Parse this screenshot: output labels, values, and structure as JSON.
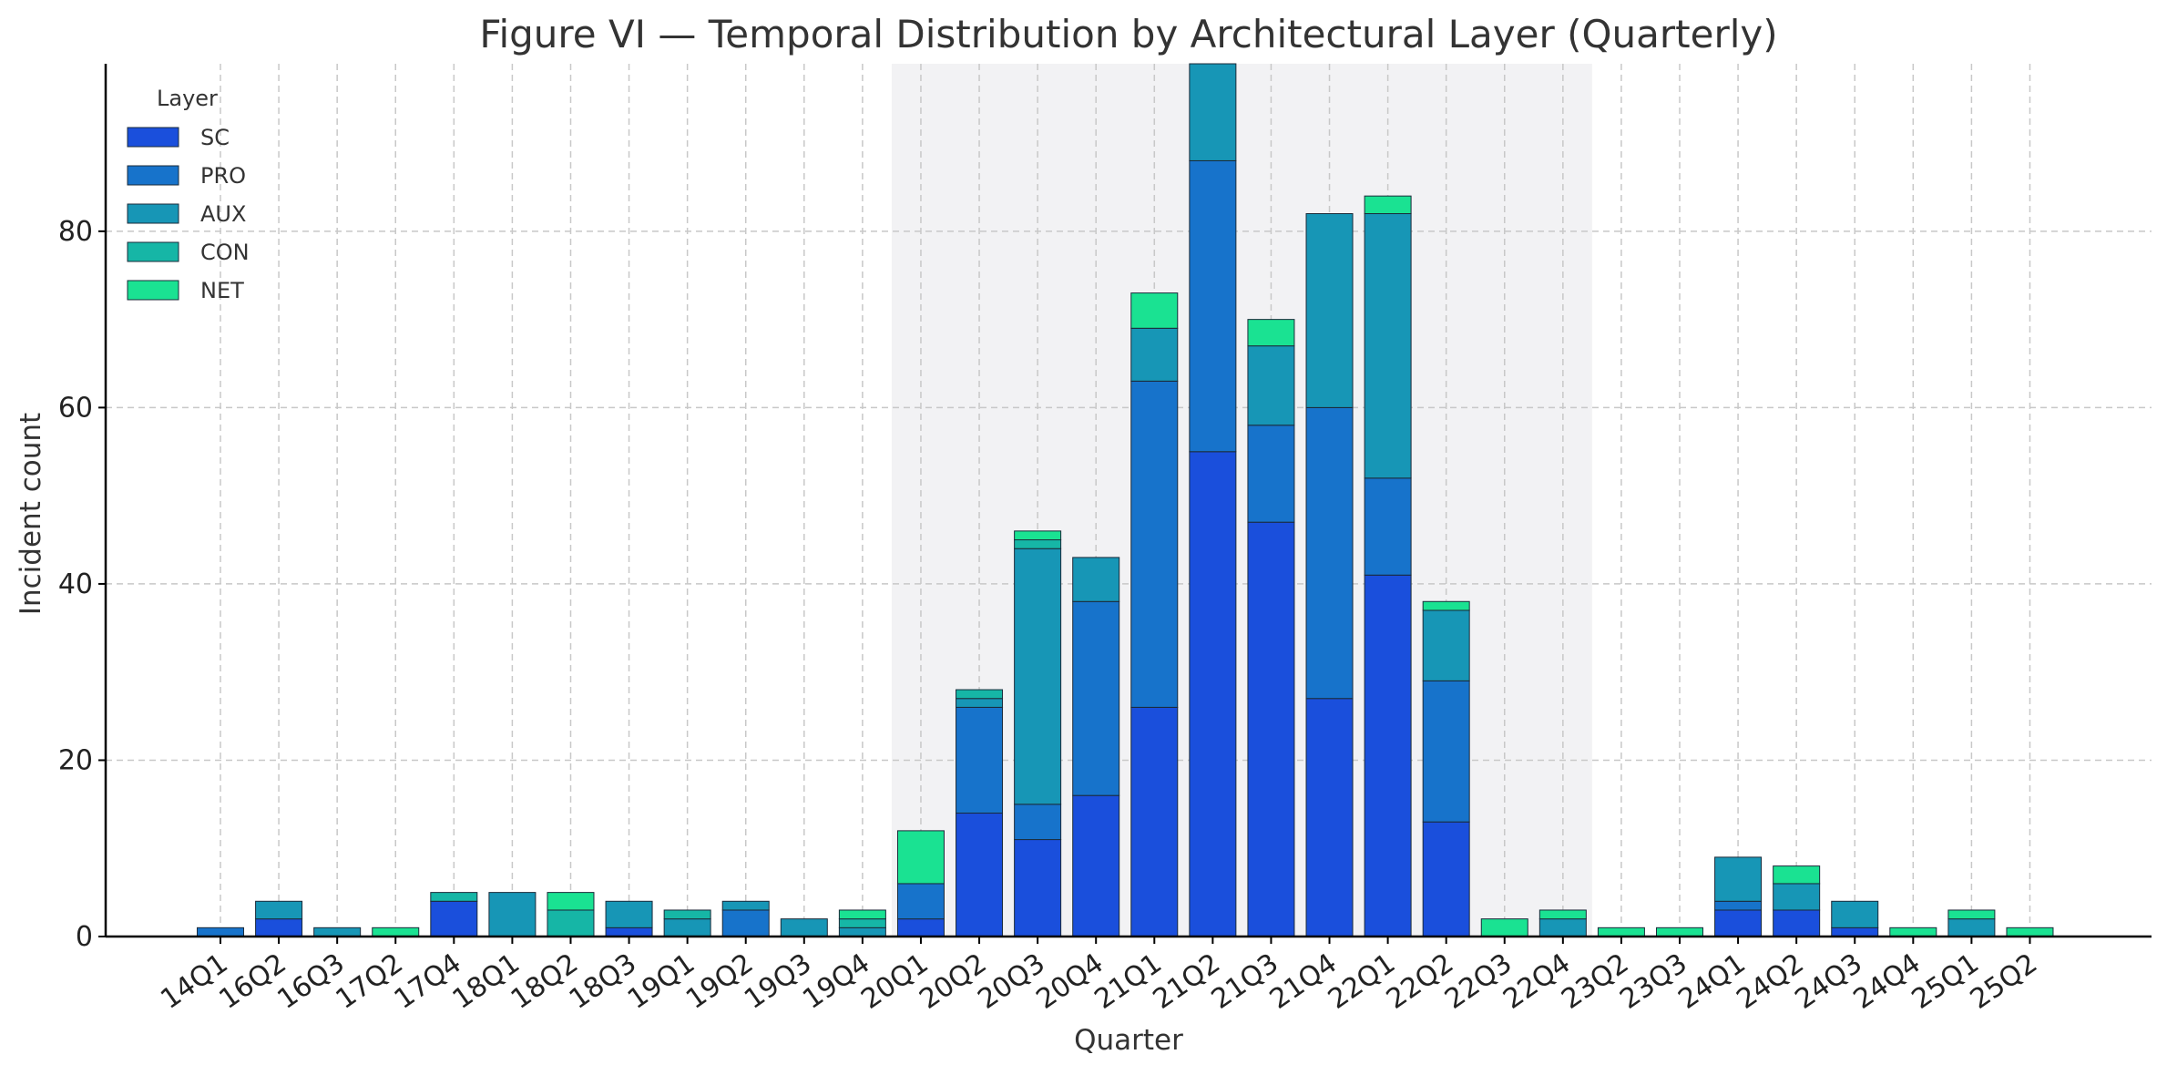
{
  "chart_data": {
    "type": "bar",
    "stacked": true,
    "title": "Figure VI — Temporal Distribution by Architectural Layer (Quarterly)",
    "xlabel": "Quarter",
    "ylabel": "Incident count",
    "ylim": [
      0,
      99
    ],
    "yticks": [
      0,
      20,
      40,
      60,
      80
    ],
    "grid": true,
    "legend": {
      "title": "Layer",
      "placement": "top-left"
    },
    "highlight_range": [
      "20Q1",
      "22Q4"
    ],
    "categories": [
      "14Q1",
      "16Q2",
      "16Q3",
      "17Q2",
      "17Q4",
      "18Q1",
      "18Q2",
      "18Q3",
      "19Q1",
      "19Q2",
      "19Q3",
      "19Q4",
      "20Q1",
      "20Q2",
      "20Q3",
      "20Q4",
      "21Q1",
      "21Q2",
      "21Q3",
      "21Q4",
      "22Q1",
      "22Q2",
      "22Q3",
      "22Q4",
      "23Q2",
      "23Q3",
      "24Q1",
      "24Q2",
      "24Q3",
      "24Q4",
      "25Q1",
      "25Q2"
    ],
    "series": [
      {
        "name": "SC",
        "color": "#1a4fdc",
        "values": [
          0,
          2,
          0,
          0,
          4,
          0,
          0,
          1,
          0,
          0,
          0,
          0,
          2,
          14,
          11,
          16,
          26,
          55,
          47,
          27,
          41,
          13,
          0,
          0,
          0,
          0,
          3,
          3,
          1,
          0,
          0,
          0
        ]
      },
      {
        "name": "PRO",
        "color": "#1773cb",
        "values": [
          1,
          0,
          0,
          0,
          0,
          0,
          0,
          0,
          0,
          3,
          0,
          0,
          4,
          12,
          4,
          22,
          37,
          33,
          11,
          33,
          11,
          16,
          0,
          0,
          0,
          0,
          1,
          0,
          0,
          0,
          0,
          0
        ]
      },
      {
        "name": "AUX",
        "color": "#1796b6",
        "values": [
          0,
          2,
          1,
          0,
          0,
          5,
          0,
          3,
          2,
          1,
          2,
          1,
          0,
          1,
          29,
          5,
          6,
          11,
          9,
          22,
          30,
          8,
          0,
          2,
          0,
          0,
          5,
          3,
          3,
          0,
          2,
          0
        ]
      },
      {
        "name": "CON",
        "color": "#16b6a6",
        "values": [
          0,
          0,
          0,
          0,
          1,
          0,
          3,
          0,
          1,
          0,
          0,
          1,
          0,
          1,
          1,
          0,
          0,
          0,
          0,
          0,
          0,
          0,
          0,
          0,
          0,
          0,
          0,
          0,
          0,
          0,
          0,
          0
        ]
      },
      {
        "name": "NET",
        "color": "#1ae292",
        "values": [
          0,
          0,
          0,
          1,
          0,
          0,
          2,
          0,
          0,
          0,
          0,
          1,
          6,
          0,
          1,
          0,
          4,
          0,
          3,
          0,
          2,
          1,
          2,
          1,
          1,
          1,
          0,
          2,
          0,
          1,
          1,
          1
        ]
      }
    ]
  }
}
